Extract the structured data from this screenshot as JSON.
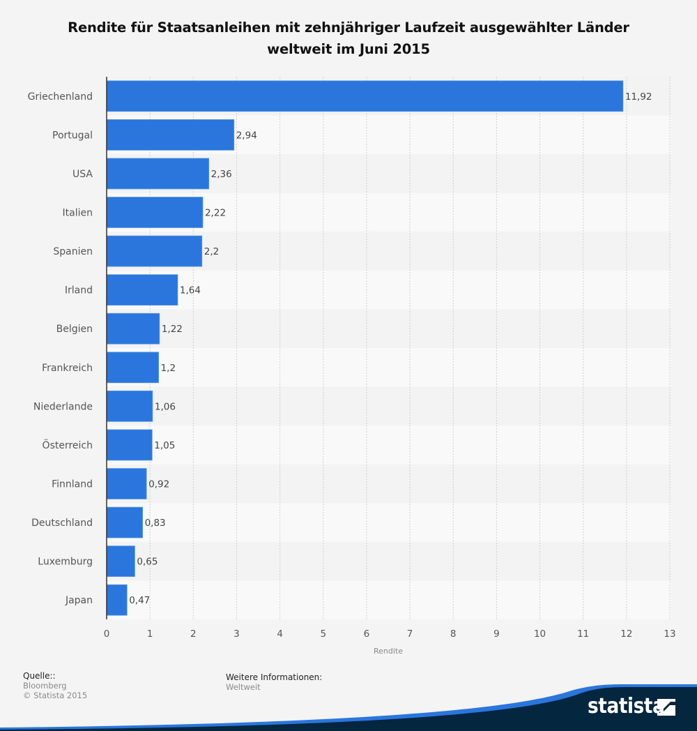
{
  "title": {
    "line1": "Rendite für Staatsanleihen mit zehnjähriger Laufzeit ausgewählter Länder",
    "line2": "weltweit im Juni 2015"
  },
  "chart_data": {
    "type": "bar",
    "orientation": "horizontal",
    "title": "Rendite für Staatsanleihen mit zehnjähriger Laufzeit ausgewählter Länder weltweit im Juni 2015",
    "xlabel": "Rendite",
    "ylabel": "",
    "xlim": [
      0,
      13
    ],
    "xticks": [
      0,
      1,
      2,
      3,
      4,
      5,
      6,
      7,
      8,
      9,
      10,
      11,
      12,
      13
    ],
    "grid": true,
    "categories": [
      "Griechenland",
      "Portugal",
      "USA",
      "Italien",
      "Spanien",
      "Irland",
      "Belgien",
      "Frankreich",
      "Niederlande",
      "Österreich",
      "Finnland",
      "Deutschland",
      "Luxemburg",
      "Japan"
    ],
    "values": [
      11.92,
      2.94,
      2.36,
      2.22,
      2.2,
      1.64,
      1.22,
      1.2,
      1.06,
      1.05,
      0.92,
      0.83,
      0.65,
      0.47
    ],
    "value_labels": [
      "11,92",
      "2,94",
      "2,36",
      "2,22",
      "2,2",
      "1,64",
      "1,22",
      "1,2",
      "1,06",
      "1,05",
      "0,92",
      "0,83",
      "0,65",
      "0,47"
    ],
    "bar_color": "#2a76dd"
  },
  "footer": {
    "source_heading": "Quelle::",
    "source_lines": [
      "Bloomberg",
      "© Statista 2015"
    ],
    "info_heading": "Weitere Informationen:",
    "info_lines": [
      "Weltweit"
    ]
  },
  "brand": {
    "logo_text": "statista",
    "logo_icon": "statista-logo-icon",
    "dark_color": "#04263f",
    "accent_color": "#2a76dd"
  }
}
